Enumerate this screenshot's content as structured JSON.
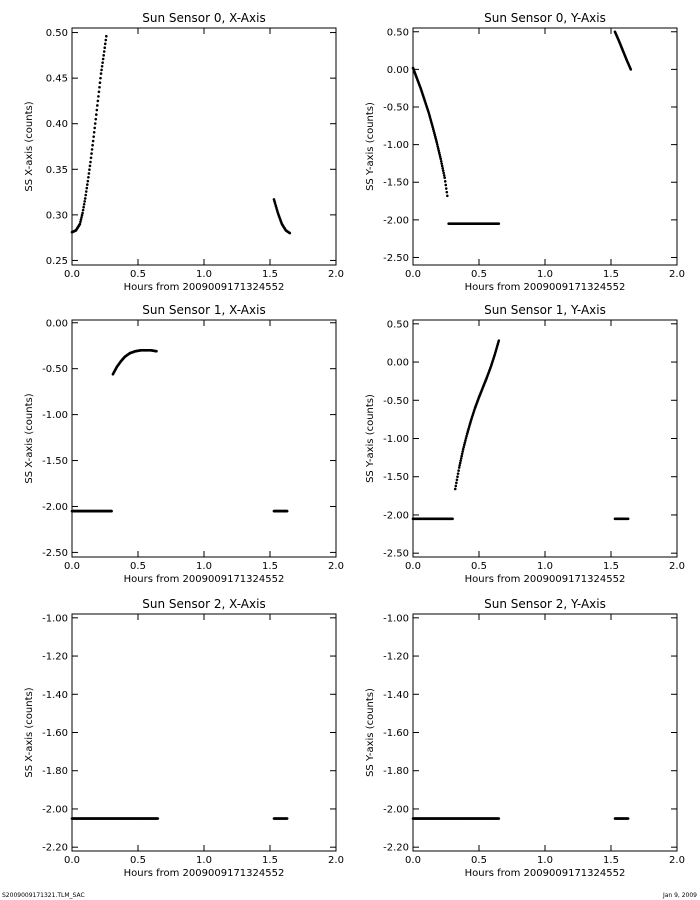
{
  "footer": {
    "left": "S2009009171321.TLM_SAC",
    "right": "Jan 9, 2009"
  },
  "chart_data": [
    {
      "type": "scatter",
      "title": "Sun Sensor 0, X-Axis",
      "xlabel": "Hours from 2009009171324552",
      "ylabel": "SS X-axis (counts)",
      "xlim": [
        0,
        2.0
      ],
      "ylim": [
        0.245,
        0.505
      ],
      "xticks": [
        0,
        0.5,
        1.0,
        1.5,
        2.0
      ],
      "xtick_labels": [
        "0.0",
        "0.5",
        "1.0",
        "1.5",
        "2.0"
      ],
      "yticks": [
        0.25,
        0.3,
        0.35,
        0.4,
        0.45,
        0.5
      ],
      "ytick_labels": [
        "0.25",
        "0.30",
        "0.35",
        "0.40",
        "0.45",
        "0.50"
      ],
      "grid": false,
      "series": [
        {
          "x": [
            0.0,
            0.03,
            0.06,
            0.08,
            0.1,
            0.12,
            0.14,
            0.16,
            0.18,
            0.2,
            0.22,
            0.24,
            0.26
          ],
          "y": [
            0.281,
            0.283,
            0.29,
            0.302,
            0.318,
            0.337,
            0.358,
            0.381,
            0.405,
            0.43,
            0.455,
            0.475,
            0.496
          ]
        },
        {
          "x": [
            1.53,
            1.56,
            1.59,
            1.62,
            1.65
          ],
          "y": [
            0.317,
            0.302,
            0.29,
            0.283,
            0.28
          ]
        }
      ]
    },
    {
      "type": "scatter",
      "title": "Sun Sensor 0, Y-Axis",
      "xlabel": "Hours from 2009009171324552",
      "ylabel": "SS Y-axis (counts)",
      "xlim": [
        0,
        2.0
      ],
      "ylim": [
        -2.6,
        0.55
      ],
      "xticks": [
        0,
        0.5,
        1.0,
        1.5,
        2.0
      ],
      "xtick_labels": [
        "0.0",
        "0.5",
        "1.0",
        "1.5",
        "2.0"
      ],
      "yticks": [
        -2.5,
        -2.0,
        -1.5,
        -1.0,
        -0.5,
        0.0,
        0.5
      ],
      "ytick_labels": [
        "-2.50",
        "-2.00",
        "-1.50",
        "-1.00",
        "-0.50",
        "0.00",
        "0.50"
      ],
      "grid": false,
      "series": [
        {
          "x": [
            0.0,
            0.03,
            0.06,
            0.09,
            0.12,
            0.15,
            0.18,
            0.21,
            0.24,
            0.26
          ],
          "y": [
            0.02,
            -0.12,
            -0.26,
            -0.42,
            -0.58,
            -0.77,
            -0.97,
            -1.19,
            -1.44,
            -1.68
          ]
        },
        {
          "x": [
            0.27,
            0.35,
            0.45,
            0.55,
            0.65
          ],
          "y": [
            -2.05,
            -2.05,
            -2.05,
            -2.05,
            -2.05
          ]
        },
        {
          "x": [
            1.53,
            1.56,
            1.59,
            1.62,
            1.65
          ],
          "y": [
            0.5,
            0.38,
            0.25,
            0.12,
            0.0
          ]
        }
      ]
    },
    {
      "type": "scatter",
      "title": "Sun Sensor 1, X-Axis",
      "xlabel": "Hours from 2009009171324552",
      "ylabel": "SS X-axis (counts)",
      "xlim": [
        0,
        2.0
      ],
      "ylim": [
        -2.55,
        0.03
      ],
      "xticks": [
        0,
        0.5,
        1.0,
        1.5,
        2.0
      ],
      "xtick_labels": [
        "0.0",
        "0.5",
        "1.0",
        "1.5",
        "2.0"
      ],
      "yticks": [
        -2.5,
        -2.0,
        -1.5,
        -1.0,
        -0.5,
        0.0
      ],
      "ytick_labels": [
        "-2.50",
        "-2.00",
        "-1.50",
        "-1.00",
        "-0.50",
        "0.00"
      ],
      "grid": false,
      "series": [
        {
          "x": [
            0.0,
            0.1,
            0.2,
            0.3
          ],
          "y": [
            -2.05,
            -2.05,
            -2.05,
            -2.05
          ]
        },
        {
          "x": [
            0.31,
            0.34,
            0.37,
            0.4,
            0.44,
            0.48,
            0.52,
            0.56,
            0.6,
            0.64
          ],
          "y": [
            -0.56,
            -0.48,
            -0.42,
            -0.37,
            -0.33,
            -0.31,
            -0.3,
            -0.3,
            -0.3,
            -0.31
          ]
        },
        {
          "x": [
            1.53,
            1.58,
            1.63
          ],
          "y": [
            -2.05,
            -2.05,
            -2.05
          ]
        }
      ]
    },
    {
      "type": "scatter",
      "title": "Sun Sensor 1, Y-Axis",
      "xlabel": "Hours from 2009009171324552",
      "ylabel": "SS Y-axis (counts)",
      "xlim": [
        0,
        2.0
      ],
      "ylim": [
        -2.55,
        0.55
      ],
      "xticks": [
        0,
        0.5,
        1.0,
        1.5,
        2.0
      ],
      "xtick_labels": [
        "0.0",
        "0.5",
        "1.0",
        "1.5",
        "2.0"
      ],
      "yticks": [
        -2.5,
        -2.0,
        -1.5,
        -1.0,
        -0.5,
        0.0,
        0.5
      ],
      "ytick_labels": [
        "-2.50",
        "-2.00",
        "-1.50",
        "-1.00",
        "-0.50",
        "0.00",
        "0.50"
      ],
      "grid": false,
      "series": [
        {
          "x": [
            0.0,
            0.1,
            0.2,
            0.3
          ],
          "y": [
            -2.05,
            -2.05,
            -2.05,
            -2.05
          ]
        },
        {
          "x": [
            0.32,
            0.35,
            0.38,
            0.41,
            0.44,
            0.47,
            0.5,
            0.53,
            0.56,
            0.59,
            0.62,
            0.65
          ],
          "y": [
            -1.66,
            -1.38,
            -1.14,
            -0.94,
            -0.76,
            -0.6,
            -0.46,
            -0.33,
            -0.2,
            -0.06,
            0.1,
            0.28
          ]
        },
        {
          "x": [
            1.53,
            1.58,
            1.63
          ],
          "y": [
            -2.05,
            -2.05,
            -2.05
          ]
        }
      ]
    },
    {
      "type": "scatter",
      "title": "Sun Sensor 2, X-Axis",
      "xlabel": "Hours from 2009009171324552",
      "ylabel": "SS X-axis (counts)",
      "xlim": [
        0,
        2.0
      ],
      "ylim": [
        -2.22,
        -0.98
      ],
      "xticks": [
        0,
        0.5,
        1.0,
        1.5,
        2.0
      ],
      "xtick_labels": [
        "0.0",
        "0.5",
        "1.0",
        "1.5",
        "2.0"
      ],
      "yticks": [
        -2.2,
        -2.0,
        -1.8,
        -1.6,
        -1.4,
        -1.2,
        -1.0
      ],
      "ytick_labels": [
        "-2.20",
        "-2.00",
        "-1.80",
        "-1.60",
        "-1.40",
        "-1.20",
        "-1.00"
      ],
      "grid": false,
      "series": [
        {
          "x": [
            0.0,
            0.2,
            0.4,
            0.65
          ],
          "y": [
            -2.05,
            -2.05,
            -2.05,
            -2.05
          ]
        },
        {
          "x": [
            1.53,
            1.58,
            1.63
          ],
          "y": [
            -2.05,
            -2.05,
            -2.05
          ]
        }
      ]
    },
    {
      "type": "scatter",
      "title": "Sun Sensor 2, Y-Axis",
      "xlabel": "Hours from 2009009171324552",
      "ylabel": "SS Y-axis (counts)",
      "xlim": [
        0,
        2.0
      ],
      "ylim": [
        -2.22,
        -0.98
      ],
      "xticks": [
        0,
        0.5,
        1.0,
        1.5,
        2.0
      ],
      "xtick_labels": [
        "0.0",
        "0.5",
        "1.0",
        "1.5",
        "2.0"
      ],
      "yticks": [
        -2.2,
        -2.0,
        -1.8,
        -1.6,
        -1.4,
        -1.2,
        -1.0
      ],
      "ytick_labels": [
        "-2.20",
        "-2.00",
        "-1.80",
        "-1.60",
        "-1.40",
        "-1.20",
        "-1.00"
      ],
      "grid": false,
      "series": [
        {
          "x": [
            0.0,
            0.2,
            0.4,
            0.65
          ],
          "y": [
            -2.05,
            -2.05,
            -2.05,
            -2.05
          ]
        },
        {
          "x": [
            1.53,
            1.58,
            1.63
          ],
          "y": [
            -2.05,
            -2.05,
            -2.05
          ]
        }
      ]
    }
  ]
}
